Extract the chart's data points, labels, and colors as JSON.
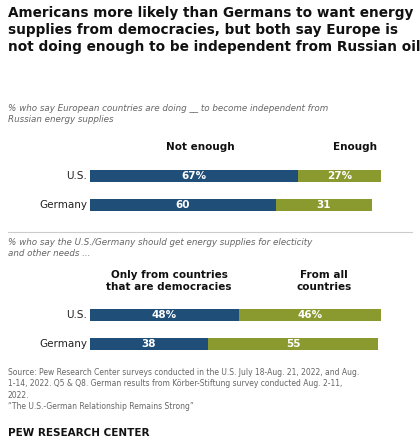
{
  "title": "Americans more likely than Germans to want energy\nsupplies from democracies, but both say Europe is\nnot doing enough to be independent from Russian oil",
  "subtitle1": "% who say European countries are doing __ to become independent from\nRussian energy supplies",
  "subtitle2": "% who say the U.S./Germany should get energy supplies for electicity\nand other needs ...",
  "section1": {
    "categories": [
      "U.S.",
      "Germany"
    ],
    "col1_label": "Not enough",
    "col2_label": "Enough",
    "col1_values": [
      67,
      60
    ],
    "col2_values": [
      27,
      31
    ],
    "col1_labels": [
      "67%",
      "60"
    ],
    "col2_labels": [
      "27%",
      "31"
    ],
    "bar_color1": "#1f4e79",
    "bar_color2": "#8a9a2e"
  },
  "section2": {
    "categories": [
      "U.S.",
      "Germany"
    ],
    "col1_label": "Only from countries\nthat are democracies",
    "col2_label": "From all\ncountries",
    "col1_values": [
      48,
      38
    ],
    "col2_values": [
      46,
      55
    ],
    "col1_labels": [
      "48%",
      "38"
    ],
    "col2_labels": [
      "46%",
      "55"
    ],
    "bar_color1": "#1f4e79",
    "bar_color2": "#8a9a2e"
  },
  "source_text": "Source: Pew Research Center surveys conducted in the U.S. July 18-Aug. 21, 2022, and Aug.\n1-14, 2022. Q5 & Q8. German results from Körber-Stiftung survey conducted Aug. 2-11,\n2022.\n“The U.S.-German Relationship Remains Strong”",
  "footer": "PEW RESEARCH CENTER",
  "background_color": "#ffffff",
  "bar_color1": "#1f4e79",
  "bar_color2": "#8a9a2e"
}
